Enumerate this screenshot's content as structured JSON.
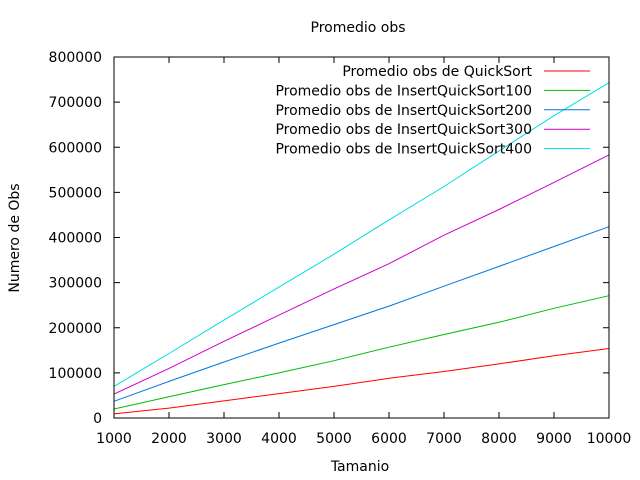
{
  "chart_data": {
    "type": "line",
    "title": "Promedio obs",
    "xlabel": "Tamanio",
    "ylabel": "Numero de Obs",
    "xlim": [
      1000,
      10000
    ],
    "ylim": [
      0,
      800000
    ],
    "x_ticks": [
      1000,
      2000,
      3000,
      4000,
      5000,
      6000,
      7000,
      8000,
      9000,
      10000
    ],
    "y_ticks": [
      0,
      100000,
      200000,
      300000,
      400000,
      500000,
      600000,
      700000,
      800000
    ],
    "grid": false,
    "legend_position": "top-right",
    "x": [
      1000,
      2000,
      3000,
      4000,
      5000,
      6000,
      7000,
      8000,
      9000,
      10000
    ],
    "series": [
      {
        "name": "Promedio obs de QuickSort",
        "color": "#ff0000",
        "values": [
          9000,
          22000,
          38000,
          54000,
          70000,
          88000,
          103000,
          120000,
          138000,
          154000
        ]
      },
      {
        "name": "Promedio obs de InsertQuickSort100",
        "color": "#00bb00",
        "values": [
          20000,
          47000,
          74000,
          100000,
          127000,
          157000,
          185000,
          212000,
          243000,
          271000
        ]
      },
      {
        "name": "Promedio obs de InsertQuickSort200",
        "color": "#0077dd",
        "values": [
          37000,
          81000,
          124000,
          166000,
          207000,
          248000,
          292000,
          336000,
          380000,
          424000
        ]
      },
      {
        "name": "Promedio obs de InsertQuickSort300",
        "color": "#cc00cc",
        "values": [
          53000,
          110000,
          170000,
          228000,
          286000,
          342000,
          405000,
          462000,
          522000,
          583000
        ]
      },
      {
        "name": "Promedio obs de InsertQuickSort400",
        "color": "#00dddd",
        "values": [
          70000,
          143000,
          217000,
          290000,
          363000,
          439000,
          513000,
          592000,
          670000,
          743000
        ]
      }
    ]
  }
}
